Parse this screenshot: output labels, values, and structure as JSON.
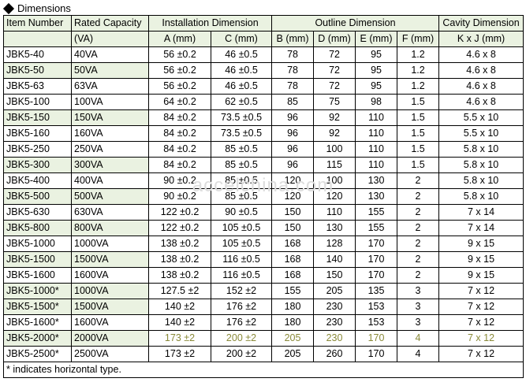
{
  "title": "Dimensions",
  "watermark": "accelchina.com",
  "headers": {
    "row1": {
      "item": "Item Number",
      "rated": "Rated Capacity",
      "install": "Installation Dimension",
      "outline": "Outline Dimension",
      "cavity": "Cavity Dimension"
    },
    "row2": {
      "rated": "(VA)",
      "a": "A (mm)",
      "c": "C (mm)",
      "b": "B (mm)",
      "d": "D (mm)",
      "e": "E (mm)",
      "f": "F (mm)",
      "kj": "K x J (mm)"
    }
  },
  "rows": [
    [
      "JBK5-40",
      "40VA",
      "56 ±0.2",
      "46 ±0.5",
      "78",
      "72",
      "95",
      "1.2",
      "4.6 x 8"
    ],
    [
      "JBK5-50",
      "50VA",
      "56 ±0.2",
      "46 ±0.5",
      "78",
      "72",
      "95",
      "1.2",
      "4.6 x 8"
    ],
    [
      "JBK5-63",
      "63VA",
      "56 ±0.2",
      "46 ±0.5",
      "78",
      "72",
      "95",
      "1.2",
      "4.6 x 8"
    ],
    [
      "JBK5-100",
      "100VA",
      "64 ±0.2",
      "62 ±0.5",
      "85",
      "75",
      "98",
      "1.5",
      "4.6 x 8"
    ],
    [
      "JBK5-150",
      "150VA",
      "84 ±0.2",
      "73.5 ±0.5",
      "96",
      "92",
      "110",
      "1.5",
      "5.5 x 10"
    ],
    [
      "JBK5-160",
      "160VA",
      "84 ±0.2",
      "73.5 ±0.5",
      "96",
      "92",
      "110",
      "1.5",
      "5.5 x 10"
    ],
    [
      "JBK5-250",
      "250VA",
      "84 ±0.2",
      "85 ±0.5",
      "96",
      "100",
      "110",
      "1.5",
      "5.8 x 10"
    ],
    [
      "JBK5-300",
      "300VA",
      "84 ±0.2",
      "85 ±0.5",
      "96",
      "115",
      "110",
      "1.5",
      "5.8 x 10"
    ],
    [
      "JBK5-400",
      "400VA",
      "90 ±0.2",
      "85 ±0.5",
      "120",
      "100",
      "130",
      "2",
      "5.8 x 10"
    ],
    [
      "JBK5-500",
      "500VA",
      "90 ±0.2",
      "85 ±0.5",
      "120",
      "120",
      "130",
      "2",
      "5.8 x 10"
    ],
    [
      "JBK5-630",
      "630VA",
      "122 ±0.2",
      "90 ±0.5",
      "150",
      "110",
      "155",
      "2",
      "7 x 14"
    ],
    [
      "JBK5-800",
      "800VA",
      "122 ±0.2",
      "105 ±0.5",
      "150",
      "130",
      "155",
      "2",
      "7 x 14"
    ],
    [
      "JBK5-1000",
      "1000VA",
      "138 ±0.2",
      "105 ±0.5",
      "168",
      "128",
      "170",
      "2",
      "9 x 15"
    ],
    [
      "JBK5-1500",
      "1500VA",
      "138 ±0.2",
      "116 ±0.5",
      "168",
      "140",
      "170",
      "2",
      "9 x 15"
    ],
    [
      "JBK5-1600",
      "1600VA",
      "138 ±0.2",
      "116 ±0.5",
      "168",
      "150",
      "170",
      "2",
      "9 x 15"
    ],
    [
      "JBK5-1000*",
      "1000VA",
      "127.5 ±2",
      "152 ±2",
      "155",
      "205",
      "135",
      "3",
      "7 x 12"
    ],
    [
      "JBK5-1500*",
      "1500VA",
      "140 ±2",
      "176 ±2",
      "180",
      "230",
      "153",
      "3",
      "7 x 12"
    ],
    [
      "JBK5-1600*",
      "1600VA",
      "140 ±2",
      "176 ±2",
      "180",
      "230",
      "153",
      "3",
      "7 x 12"
    ],
    [
      "JBK5-2000*",
      "2000VA",
      "173 ±2",
      "200 ±2",
      "205",
      "230",
      "170",
      "4",
      "7 x 12"
    ],
    [
      "JBK5-2500*",
      "2500VA",
      "173 ±2",
      "200 ±2",
      "205",
      "260",
      "170",
      "4",
      "7 x 12"
    ]
  ],
  "note": "* indicates horizontal type."
}
